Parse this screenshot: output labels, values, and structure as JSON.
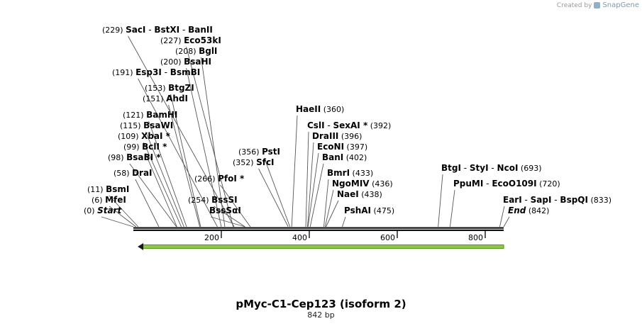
{
  "brand": {
    "created_by": "Created by",
    "name": "SnapGene"
  },
  "map": {
    "title": "pMyc-C1-Cep123 (isoform 2)",
    "length_label": "842 bp",
    "length_bp": 842,
    "ticks": [
      "200",
      "400",
      "600",
      "800"
    ],
    "feature": {
      "start_bp": 13,
      "end_bp": 842,
      "direction": "reverse",
      "color": "#8ccc3c"
    }
  },
  "labels": [
    {
      "pos": "(229)",
      "names": [
        "SacI",
        "BstXI",
        "BanII"
      ],
      "sites": [
        229,
        229,
        229
      ],
      "star": [
        false,
        false,
        false
      ]
    },
    {
      "pos": "(227)",
      "names": [
        "Eco53kI"
      ],
      "sites": [
        227
      ],
      "star": [
        false
      ]
    },
    {
      "pos": "(208)",
      "names": [
        "BglI"
      ],
      "sites": [
        208
      ],
      "star": [
        false
      ]
    },
    {
      "pos": "(200)",
      "names": [
        "BsaHI"
      ],
      "sites": [
        200
      ],
      "star": [
        false
      ]
    },
    {
      "pos": "(191)",
      "names": [
        "Esp3I",
        "BsmBI"
      ],
      "sites": [
        191,
        191
      ],
      "star": [
        false,
        false
      ]
    },
    {
      "pos": "(153)",
      "names": [
        "BtgZI"
      ],
      "sites": [
        153
      ],
      "star": [
        false
      ]
    },
    {
      "pos": "(151)",
      "names": [
        "AhdI"
      ],
      "sites": [
        151
      ],
      "star": [
        false
      ]
    },
    {
      "pos": "(121)",
      "names": [
        "BamHI"
      ],
      "sites": [
        121
      ],
      "star": [
        false
      ]
    },
    {
      "pos": "(115)",
      "names": [
        "BsaWI"
      ],
      "sites": [
        115
      ],
      "star": [
        false
      ]
    },
    {
      "pos": "(109)",
      "names": [
        "XbaI"
      ],
      "sites": [
        109
      ],
      "star": [
        true
      ]
    },
    {
      "pos": "(99)",
      "names": [
        "BclI"
      ],
      "sites": [
        99
      ],
      "star": [
        true
      ]
    },
    {
      "pos": "(98)",
      "names": [
        "BsaBI"
      ],
      "sites": [
        98
      ],
      "star": [
        true
      ]
    },
    {
      "pos": "(58)",
      "names": [
        "DraI"
      ],
      "sites": [
        58
      ],
      "star": [
        false
      ]
    },
    {
      "pos": "(11)",
      "names": [
        "BsmI"
      ],
      "sites": [
        11
      ],
      "star": [
        false
      ]
    },
    {
      "pos": "(6)",
      "names": [
        "MfeI"
      ],
      "sites": [
        6
      ],
      "star": [
        false
      ]
    },
    {
      "pos": "(0)",
      "names": [
        "Start"
      ],
      "sites": [
        0
      ],
      "star": [
        false
      ],
      "italic": true
    },
    {
      "pos": "(356)",
      "names": [
        "PstI"
      ],
      "sites": [
        356
      ],
      "star": [
        false
      ]
    },
    {
      "pos": "(352)",
      "names": [
        "SfcI"
      ],
      "sites": [
        352
      ],
      "star": [
        false
      ]
    },
    {
      "pos": "(266)",
      "names": [
        "PfoI"
      ],
      "sites": [
        266
      ],
      "star": [
        true
      ],
      "pos_first": true
    },
    {
      "pos": "(254)",
      "names": [
        "BssSI"
      ],
      "sites": [
        254
      ],
      "star": [
        false
      ],
      "pos_first": true
    },
    {
      "pos": "",
      "names": [
        "BssSαI"
      ],
      "sites": [
        254
      ],
      "star": [
        false
      ]
    },
    {
      "pos": "(360)",
      "names": [
        "HaeII"
      ],
      "sites": [
        360
      ],
      "star": [
        false
      ]
    },
    {
      "pos": "(392)",
      "names": [
        "CslI",
        "SexAI"
      ],
      "sites": [
        392,
        392
      ],
      "star": [
        false,
        true
      ]
    },
    {
      "pos": "(396)",
      "names": [
        "DraIII"
      ],
      "sites": [
        396
      ],
      "star": [
        false
      ]
    },
    {
      "pos": "(397)",
      "names": [
        "EcoNI"
      ],
      "sites": [
        397
      ],
      "star": [
        false
      ]
    },
    {
      "pos": "(402)",
      "names": [
        "BanI"
      ],
      "sites": [
        402
      ],
      "star": [
        false
      ]
    },
    {
      "pos": "(433)",
      "names": [
        "BmrI"
      ],
      "sites": [
        433
      ],
      "star": [
        false
      ]
    },
    {
      "pos": "(436)",
      "names": [
        "NgoMIV"
      ],
      "sites": [
        436
      ],
      "star": [
        false
      ]
    },
    {
      "pos": "(438)",
      "names": [
        "NaeI"
      ],
      "sites": [
        438
      ],
      "star": [
        false
      ]
    },
    {
      "pos": "(475)",
      "names": [
        "PshAI"
      ],
      "sites": [
        475
      ],
      "star": [
        false
      ]
    },
    {
      "pos": "(693)",
      "names": [
        "BtgI",
        "StyI",
        "NcoI"
      ],
      "sites": [
        693,
        693,
        693
      ],
      "star": [
        false,
        false,
        false
      ]
    },
    {
      "pos": "(720)",
      "names": [
        "PpuMI",
        "EcoO109I"
      ],
      "sites": [
        720,
        720
      ],
      "star": [
        false,
        false
      ]
    },
    {
      "pos": "(833)",
      "names": [
        "EarI",
        "SapI",
        "BspQI"
      ],
      "sites": [
        833,
        833,
        833
      ],
      "star": [
        false,
        false,
        false
      ]
    },
    {
      "pos": "(842)",
      "names": [
        "End"
      ],
      "sites": [
        842
      ],
      "star": [
        false
      ],
      "italic": true
    }
  ]
}
